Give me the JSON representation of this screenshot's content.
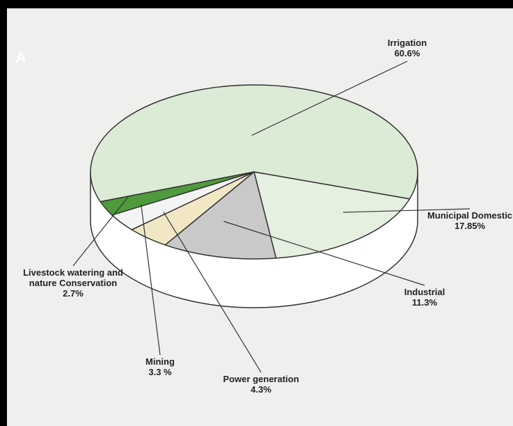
{
  "chart_data": {
    "type": "pie",
    "panel_label": "A",
    "categories": [
      "Irrigation",
      "Municipal Domestic",
      "Industrial",
      "Power generation",
      "Mining",
      "Livestock watering and nature Conservation"
    ],
    "values": [
      60.6,
      17.85,
      11.3,
      4.3,
      3.3,
      2.7
    ],
    "value_labels": [
      "60.6%",
      "17.85%",
      "11.3%",
      "4.3%",
      "3.3 %",
      "2.7%"
    ],
    "colors": [
      "#dcebd6",
      "#e6f0e0",
      "#c9c9c9",
      "#f2e7c4",
      "#f4f4f4",
      "#4f9a3c"
    ]
  }
}
